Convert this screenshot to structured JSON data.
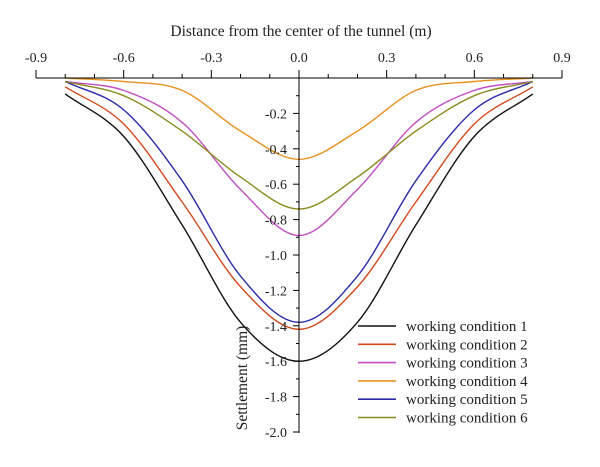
{
  "chart_data": {
    "type": "line",
    "xlabel": "Distance from the center of the tunnel (m)",
    "ylabel": "Settlement (mm)",
    "xlim": [
      -0.9,
      0.9
    ],
    "ylim": [
      0,
      -2.0
    ],
    "x_ticks": [
      "-0.9",
      "-0.6",
      "-0.3",
      "0.0",
      "0.3",
      "0.6",
      "0.9"
    ],
    "y_ticks": [
      "-0.2",
      "-0.4",
      "-0.6",
      "-0.8",
      "-1.0",
      "-1.2",
      "-1.4",
      "-1.6",
      "-1.8",
      "-2.0"
    ],
    "x_axis_position": "top",
    "y_axis_position": "center",
    "grid": false,
    "legend_position": "bottom-right",
    "series": [
      {
        "name": "working condition 1",
        "color": "#111111",
        "x": [
          -0.8,
          -0.6,
          -0.4,
          -0.2,
          0.0,
          0.2,
          0.4,
          0.6,
          0.8
        ],
        "y": [
          -0.09,
          -0.33,
          -0.83,
          -1.38,
          -1.6,
          -1.38,
          -0.83,
          -0.33,
          -0.09
        ]
      },
      {
        "name": "working condition 2",
        "color": "#d24a1e",
        "x": [
          -0.8,
          -0.6,
          -0.4,
          -0.2,
          0.0,
          0.2,
          0.4,
          0.6,
          0.8
        ],
        "y": [
          -0.05,
          -0.26,
          -0.7,
          -1.18,
          -1.42,
          -1.18,
          -0.7,
          -0.26,
          -0.05
        ]
      },
      {
        "name": "working condition 3",
        "color": "#c24fc2",
        "x": [
          -0.8,
          -0.6,
          -0.4,
          -0.2,
          0.0,
          0.2,
          0.4,
          0.6,
          0.8
        ],
        "y": [
          -0.02,
          -0.07,
          -0.25,
          -0.63,
          -0.89,
          -0.63,
          -0.25,
          -0.07,
          -0.02
        ]
      },
      {
        "name": "working condition 4",
        "color": "#e8911e",
        "x": [
          -0.8,
          -0.6,
          -0.4,
          -0.2,
          0.0,
          0.2,
          0.4,
          0.6,
          0.8
        ],
        "y": [
          0.0,
          -0.02,
          -0.07,
          -0.3,
          -0.46,
          -0.3,
          -0.07,
          -0.02,
          0.0
        ]
      },
      {
        "name": "working condition 5",
        "color": "#2a2aa8",
        "x": [
          -0.8,
          -0.6,
          -0.4,
          -0.2,
          0.0,
          0.2,
          0.4,
          0.6,
          0.8
        ],
        "y": [
          -0.02,
          -0.18,
          -0.58,
          -1.12,
          -1.38,
          -1.12,
          -0.58,
          -0.18,
          -0.02
        ]
      },
      {
        "name": "working condition 6",
        "color": "#8a8a1e",
        "x": [
          -0.8,
          -0.6,
          -0.4,
          -0.2,
          0.0,
          0.2,
          0.4,
          0.6,
          0.8
        ],
        "y": [
          -0.02,
          -0.1,
          -0.3,
          -0.56,
          -0.74,
          -0.56,
          -0.3,
          -0.1,
          -0.02
        ]
      }
    ]
  }
}
